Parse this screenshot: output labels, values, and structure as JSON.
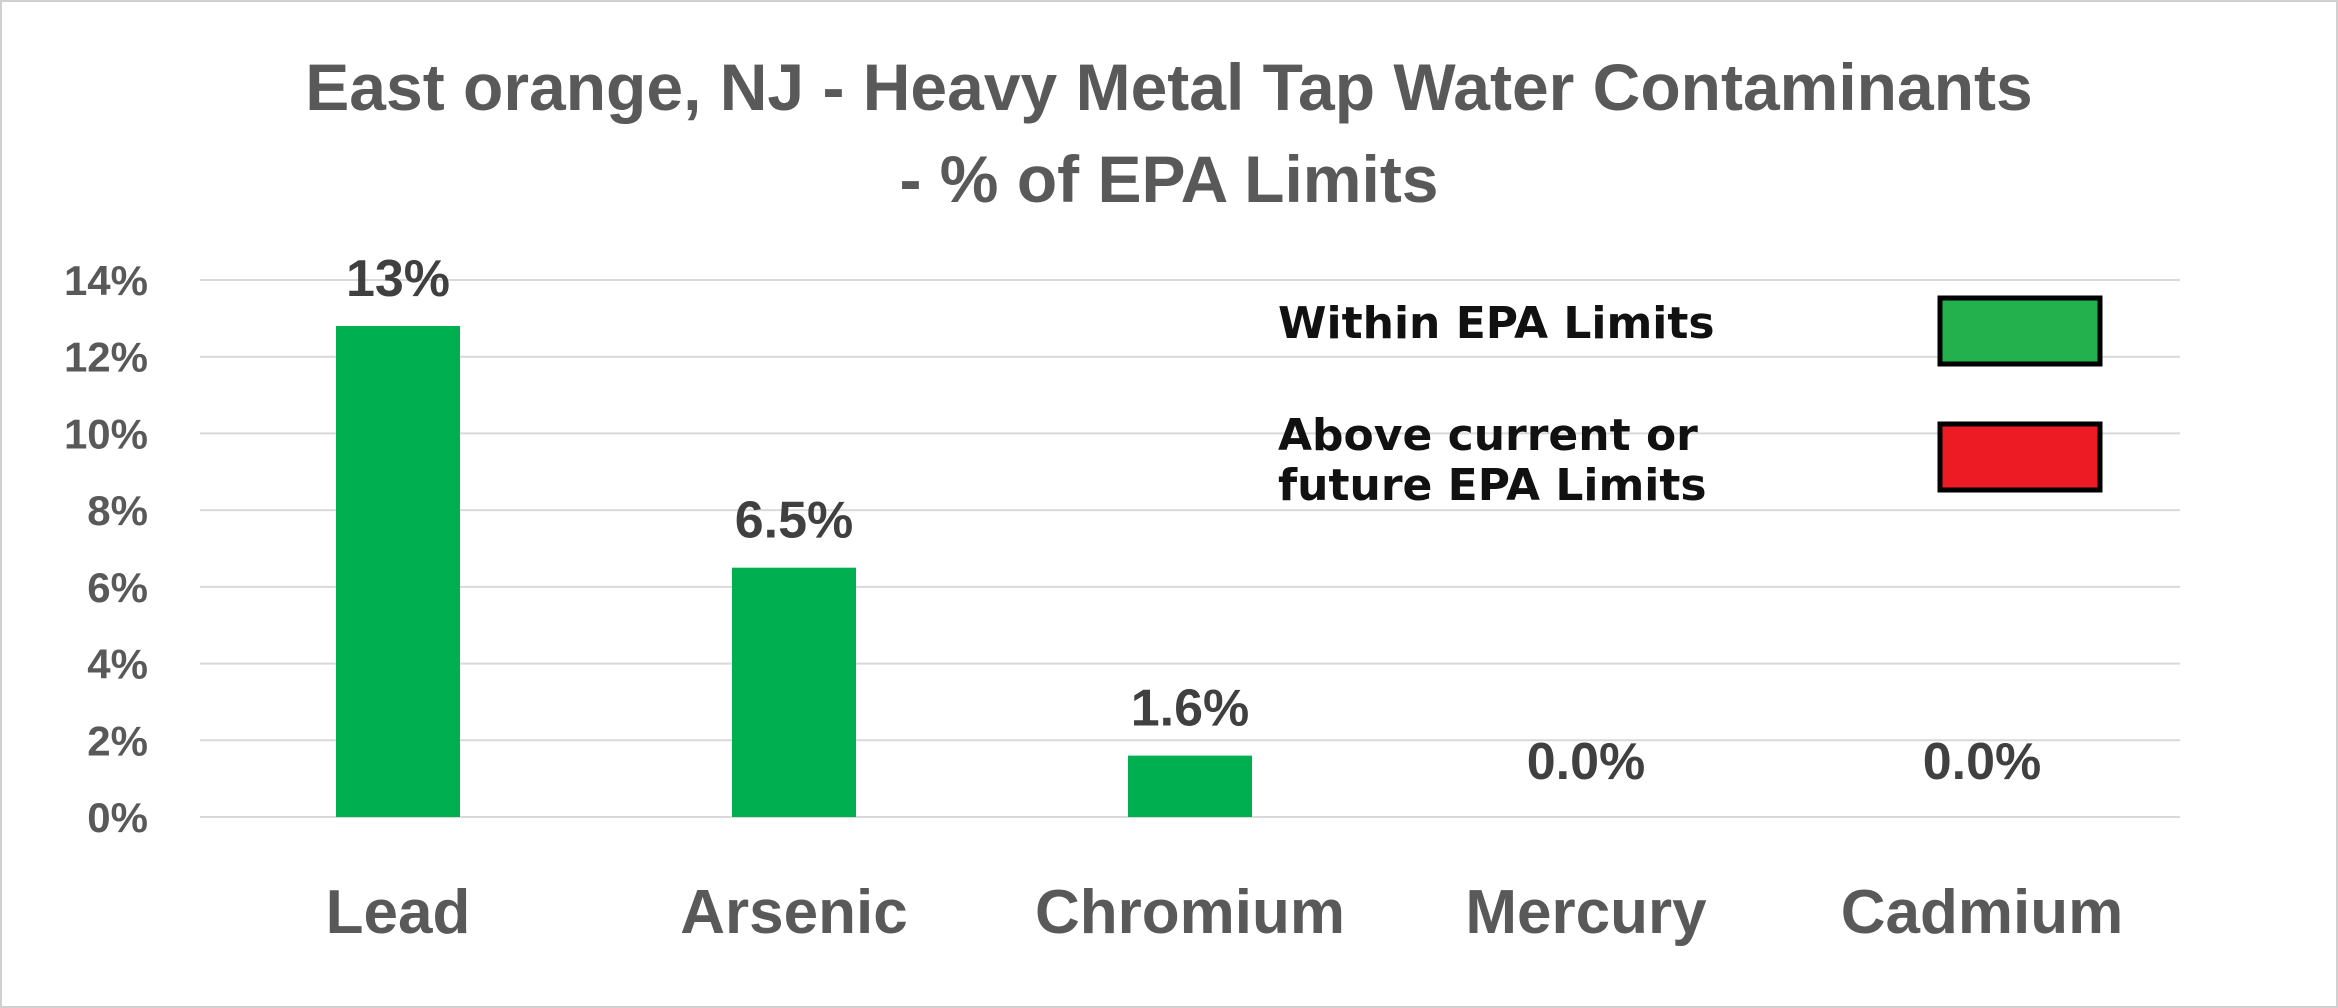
{
  "chart_data": {
    "type": "bar",
    "title_lines": [
      "East orange, NJ - Heavy Metal Tap Water Contaminants",
      "- % of EPA Limits"
    ],
    "categories": [
      "Lead",
      "Arsenic",
      "Chromium",
      "Mercury",
      "Cadmium"
    ],
    "values": [
      12.8,
      6.5,
      1.6,
      0.0,
      0.0
    ],
    "data_labels": [
      "13%",
      "6.5%",
      "1.6%",
      "0.0%",
      "0.0%"
    ],
    "yticks": [
      "0%",
      "2%",
      "4%",
      "6%",
      "8%",
      "10%",
      "12%",
      "14%"
    ],
    "ylim": [
      0,
      14
    ],
    "unit": "%",
    "grid": true,
    "bar_color": "#00b050",
    "legend": {
      "placement": "top-right",
      "items": [
        {
          "label_lines": [
            "Within  EPA Limits"
          ],
          "color": "#22b14c"
        },
        {
          "label_lines": [
            "Above current or",
            "future  EPA Limits"
          ],
          "color": "#ed1c24"
        }
      ]
    }
  }
}
